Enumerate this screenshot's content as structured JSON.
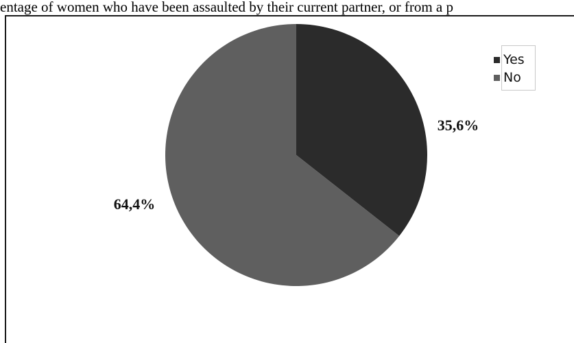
{
  "header": {
    "title": "entage of women who have been assaulted by their current partner, or from a p"
  },
  "chart_data": {
    "type": "pie",
    "title": "",
    "slices": [
      {
        "label": "Yes",
        "value": 35.6,
        "display": "35,6%",
        "color": "#2b2b2b"
      },
      {
        "label": "No",
        "value": 64.4,
        "display": "64,4%",
        "color": "#5f5f5f"
      }
    ],
    "legend_position": "top-right",
    "start_angle_deg": 0,
    "direction": "clockwise"
  }
}
